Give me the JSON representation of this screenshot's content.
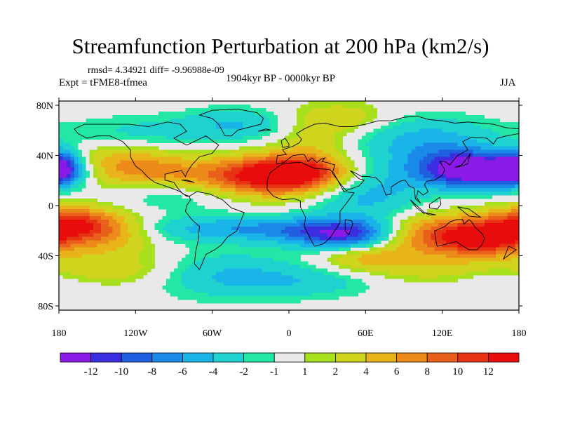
{
  "chart_data": {
    "type": "heatmap",
    "title": "Streamfunction Perturbation at 200 hPa (km2/s)",
    "stats": "rmsd= 4.34921  diff= -9.96988e-09",
    "experiment": "Expt = tFME8-tfmea",
    "period": "1904kyr BP - 0000kyr BP",
    "season": "JJA",
    "x_ticks": [
      "180",
      "120W",
      "60W",
      "0",
      "60E",
      "120E",
      "180"
    ],
    "y_ticks": [
      "80N",
      "40N",
      "0",
      "40S",
      "80S"
    ],
    "xlim": [
      -180,
      180
    ],
    "ylim": [
      -90,
      90
    ],
    "colorbar": {
      "labels": [
        "-12",
        "-10",
        "-8",
        "-6",
        "-4",
        "-2",
        "-1",
        "1",
        "2",
        "4",
        "6",
        "8",
        "10",
        "12"
      ],
      "colors": [
        "#8b1ae6",
        "#3a2ee0",
        "#1f5fe0",
        "#1a8ae8",
        "#19b4e8",
        "#1ed2d0",
        "#22e7a6",
        "#e9e9e9",
        "#a8e01e",
        "#cfd51c",
        "#e9b41a",
        "#ec8a1a",
        "#e8601a",
        "#e83214",
        "#e80c0c"
      ]
    },
    "field": {
      "description": "approximate anomaly centres (lon, lat, amplitude km2/s, radius deg)",
      "centers": [
        {
          "lon": -20,
          "lat": 25,
          "amp": 13,
          "rx": 40,
          "ry": 12
        },
        {
          "lon": 10,
          "lat": 30,
          "amp": 8,
          "rx": 25,
          "ry": 10
        },
        {
          "lon": 155,
          "lat": 30,
          "amp": -13,
          "rx": 30,
          "ry": 10
        },
        {
          "lon": 125,
          "lat": 35,
          "amp": -6,
          "rx": 30,
          "ry": 14
        },
        {
          "lon": -180,
          "lat": 33,
          "amp": -9,
          "rx": 12,
          "ry": 10
        },
        {
          "lon": -135,
          "lat": 35,
          "amp": 6,
          "rx": 30,
          "ry": 14
        },
        {
          "lon": -100,
          "lat": 30,
          "amp": 3,
          "rx": 25,
          "ry": 12
        },
        {
          "lon": 60,
          "lat": 10,
          "amp": -5,
          "rx": 30,
          "ry": 18
        },
        {
          "lon": -90,
          "lat": 10,
          "amp": -3,
          "rx": 40,
          "ry": 10
        },
        {
          "lon": -30,
          "lat": -20,
          "amp": -6,
          "rx": 60,
          "ry": 8
        },
        {
          "lon": 45,
          "lat": -25,
          "amp": -11,
          "rx": 30,
          "ry": 9
        },
        {
          "lon": 120,
          "lat": -25,
          "amp": 10,
          "rx": 40,
          "ry": 12
        },
        {
          "lon": 155,
          "lat": -30,
          "amp": 8,
          "rx": 25,
          "ry": 10
        },
        {
          "lon": -170,
          "lat": -15,
          "amp": 10,
          "rx": 25,
          "ry": 10
        },
        {
          "lon": -140,
          "lat": -25,
          "amp": 5,
          "rx": 25,
          "ry": 12
        },
        {
          "lon": -150,
          "lat": -55,
          "amp": 4,
          "rx": 40,
          "ry": 10
        },
        {
          "lon": -50,
          "lat": -60,
          "amp": -4,
          "rx": 40,
          "ry": 14
        },
        {
          "lon": 20,
          "lat": -65,
          "amp": -3,
          "rx": 40,
          "ry": 10
        },
        {
          "lon": 60,
          "lat": -45,
          "amp": 4,
          "rx": 25,
          "ry": 8
        },
        {
          "lon": 120,
          "lat": -55,
          "amp": 3,
          "rx": 50,
          "ry": 10
        },
        {
          "lon": 170,
          "lat": -60,
          "amp": -3,
          "rx": 30,
          "ry": 12
        },
        {
          "lon": -120,
          "lat": 60,
          "amp": -3,
          "rx": 40,
          "ry": 12
        },
        {
          "lon": -40,
          "lat": 70,
          "amp": -4,
          "rx": 30,
          "ry": 10
        },
        {
          "lon": 40,
          "lat": 75,
          "amp": 4,
          "rx": 30,
          "ry": 10
        },
        {
          "lon": 100,
          "lat": 60,
          "amp": -4,
          "rx": 40,
          "ry": 14
        },
        {
          "lon": 20,
          "lat": 55,
          "amp": 3,
          "rx": 20,
          "ry": 10
        }
      ]
    }
  }
}
